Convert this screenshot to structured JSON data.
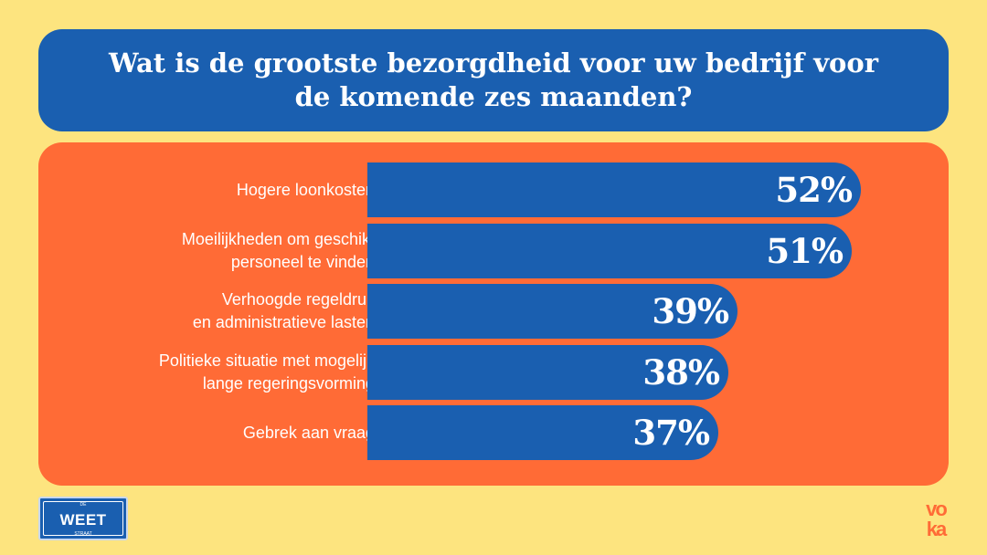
{
  "title": "Wat is de grootste bezorgdheid voor uw bedrijf voor de komende zes maanden?",
  "colors": {
    "background": "#fde47f",
    "title_box": "#1a5fb0",
    "panel": "#ff6b36",
    "bar": "#1a5fb0",
    "text": "#ffffff"
  },
  "chart_data": {
    "type": "bar",
    "orientation": "horizontal",
    "categories": [
      "Hogere loonkosten",
      "Moeilijkheden om geschikt\npersoneel te vinden",
      "Verhoogde regeldruk\nen administratieve lasten",
      "Politieke situatie met mogelijk\nlange regeringsvorming",
      "Gebrek aan vraag"
    ],
    "values": [
      52,
      51,
      39,
      38,
      37
    ],
    "value_labels": [
      "52%",
      "51%",
      "39%",
      "38%",
      "37%"
    ],
    "unit": "%"
  },
  "logos": {
    "weet": {
      "main": "WEET",
      "top": "DE",
      "bottom": "STRAAT"
    },
    "voka": {
      "text": "voka",
      "color": "#ff6b36"
    }
  }
}
